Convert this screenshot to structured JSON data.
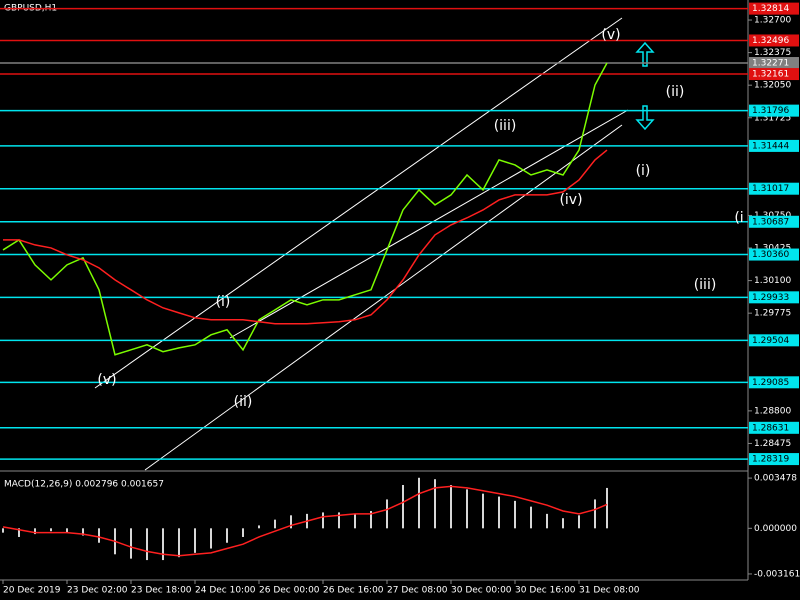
{
  "chart_data": [
    {
      "type": "line",
      "title": "GBPUSD,H1",
      "x": [
        0,
        4,
        8,
        12,
        16,
        20,
        24,
        28,
        32,
        36,
        40,
        44,
        48,
        52,
        56,
        60,
        64,
        68,
        72,
        76,
        80,
        84,
        88,
        92,
        96,
        100,
        104,
        108,
        112,
        116,
        120,
        124,
        128,
        132,
        136,
        140,
        144,
        148,
        151
      ],
      "series": [
        {
          "color": "#7cfc00",
          "values": [
            1.30406,
            1.30506,
            1.30257,
            1.30107,
            1.30257,
            1.30327,
            1.30008,
            1.2936,
            1.29409,
            1.29459,
            1.2939,
            1.29429,
            1.29459,
            1.29559,
            1.29609,
            1.29409,
            1.29709,
            1.29808,
            1.29908,
            1.29858,
            1.29908,
            1.29908,
            1.29958,
            1.30008,
            1.30406,
            1.30805,
            1.31005,
            1.30855,
            1.30955,
            1.31154,
            1.31005,
            1.31304,
            1.31254,
            1.31154,
            1.31204,
            1.31154,
            1.31403,
            1.32052,
            1.32271
          ]
        },
        {
          "color": "#ff2020",
          "values": [
            1.30506,
            1.30506,
            1.30456,
            1.30426,
            1.30357,
            1.30307,
            1.30227,
            1.30107,
            1.30008,
            1.29908,
            1.29828,
            1.29778,
            1.29729,
            1.29709,
            1.29709,
            1.29709,
            1.29689,
            1.29669,
            1.29669,
            1.29669,
            1.29679,
            1.29689,
            1.29709,
            1.29758,
            1.29908,
            1.30107,
            1.30357,
            1.30556,
            1.30656,
            1.30726,
            1.30805,
            1.30905,
            1.30955,
            1.30955,
            1.30955,
            1.30985,
            1.31104,
            1.31304,
            1.31403
          ]
        }
      ],
      "levels": [
        {
          "value": 1.32814,
          "label": "1.32814",
          "color": "#e01010"
        },
        {
          "value": 1.32496,
          "label": "1.32496",
          "color": "#e01010"
        },
        {
          "value": 1.32271,
          "label": "1.32271",
          "color": "#808080"
        },
        {
          "value": 1.32161,
          "label": "1.32161",
          "color": "#e01010"
        },
        {
          "value": 1.31796,
          "label": "1.31796",
          "color": "#00e5ee"
        },
        {
          "value": 1.31444,
          "label": "1.31444",
          "color": "#00e5ee"
        },
        {
          "value": 1.31017,
          "label": "1.31017",
          "color": "#00e5ee"
        },
        {
          "value": 1.30687,
          "label": "1.30687",
          "color": "#00e5ee"
        },
        {
          "value": 1.3036,
          "label": "1.30360",
          "color": "#00e5ee"
        },
        {
          "value": 1.29933,
          "label": "1.29933",
          "color": "#00e5ee"
        },
        {
          "value": 1.29504,
          "label": "1.29504",
          "color": "#00e5ee"
        },
        {
          "value": 1.29085,
          "label": "1.29085",
          "color": "#00e5ee"
        },
        {
          "value": 1.28631,
          "label": "1.28631",
          "color": "#00e5ee"
        },
        {
          "value": 1.28319,
          "label": "1.28319",
          "color": "#00e5ee"
        }
      ],
      "annotations": [
        {
          "text": "(v)",
          "x": 152,
          "y": 1.3255
        },
        {
          "text": "(ii)",
          "x": 168,
          "y": 1.31982
        },
        {
          "text": "(iii)",
          "x": 125.5,
          "y": 1.31643
        },
        {
          "text": "(i)",
          "x": 160,
          "y": 1.31194
        },
        {
          "text": "(iv)",
          "x": 142,
          "y": 1.30905
        },
        {
          "text": "(i",
          "x": 184,
          "y": 1.30725
        },
        {
          "text": "(iii)",
          "x": 175.5,
          "y": 1.30057
        },
        {
          "text": "(i)",
          "x": 55,
          "y": 1.29888
        },
        {
          "text": "(v)",
          "x": 26,
          "y": 1.2911
        },
        {
          "text": "(ii)",
          "x": 60,
          "y": 1.28891
        }
      ],
      "xlim": [
        -0.75,
        186.25
      ],
      "ylim": [
        1.2821,
        1.329
      ],
      "yticks": [
        {
          "value": 1.327,
          "label": "1.32700"
        },
        1.32375,
        {
          "value": 1.3205,
          "label": "1.32050"
        },
        1.31725,
        {
          "value": 1.3075,
          "label": "1.30750"
        },
        1.30425,
        {
          "value": 1.301,
          "label": "1.30100"
        },
        1.29775,
        {
          "value": 1.288,
          "label": "1.28800"
        },
        1.28475
      ],
      "xticks": [
        {
          "value": 0,
          "label": "20 Dec 2019"
        },
        {
          "value": 16,
          "label": "23 Dec 02:00"
        },
        {
          "value": 32,
          "label": "23 Dec 18:00"
        },
        {
          "value": 48,
          "label": "24 Dec 10:00"
        },
        {
          "value": 64,
          "label": "26 Dec 00:00"
        },
        {
          "value": 80,
          "label": "26 Dec 16:00"
        },
        {
          "value": 96,
          "label": "27 Dec 08:00"
        },
        {
          "value": 112,
          "label": "30 Dec 00:00"
        },
        {
          "value": 128,
          "label": "30 Dec 16:00"
        },
        {
          "value": 144,
          "label": "31 Dec 08:00"
        }
      ]
    },
    {
      "type": "bar",
      "title": "MACD(12,26,9) 0.002796 0.001657",
      "x": [
        0,
        4,
        8,
        12,
        16,
        20,
        24,
        28,
        32,
        36,
        40,
        44,
        48,
        52,
        56,
        60,
        64,
        68,
        72,
        76,
        80,
        84,
        88,
        92,
        96,
        100,
        104,
        108,
        112,
        116,
        120,
        124,
        128,
        132,
        136,
        140,
        144,
        148,
        151
      ],
      "series": [
        {
          "type": "bar",
          "color": "#d8d8d8",
          "values": [
            -0.0003,
            -0.0006,
            -0.0004,
            -0.0002,
            -0.0003,
            -0.0005,
            -0.001,
            -0.0018,
            -0.0021,
            -0.0022,
            -0.0022,
            -0.002,
            -0.0017,
            -0.0014,
            -0.001,
            -0.0006,
            0.0002,
            0.0006,
            0.0009,
            0.001,
            0.0011,
            0.0011,
            0.001,
            0.0012,
            0.002,
            0.003,
            0.0035,
            0.0034,
            0.003,
            0.0027,
            0.0024,
            0.0022,
            0.0019,
            0.0015,
            0.001,
            0.0007,
            0.0009,
            0.002,
            0.002796
          ]
        },
        {
          "type": "line",
          "color": "#ff2020",
          "values": [
            0.0001,
            -0.0001,
            -0.0003,
            -0.0003,
            -0.0003,
            -0.0004,
            -0.0006,
            -0.0009,
            -0.0013,
            -0.0016,
            -0.0018,
            -0.0019,
            -0.0018,
            -0.0017,
            -0.0014,
            -0.0011,
            -0.0006,
            -0.0002,
            0.0002,
            0.0005,
            0.0008,
            0.0009,
            0.001,
            0.001,
            0.0013,
            0.0018,
            0.0024,
            0.0028,
            0.0029,
            0.0028,
            0.0026,
            0.0024,
            0.0022,
            0.0019,
            0.0016,
            0.0012,
            0.001,
            0.0013,
            0.001657
          ]
        }
      ],
      "xlim": [
        -0.75,
        186.25
      ],
      "ylim": [
        -0.00358,
        0.0039
      ],
      "yticks": [
        {
          "value": 0.003478,
          "label": "0.003478"
        },
        {
          "value": 0,
          "label": "0.000000"
        },
        {
          "value": -0.003161,
          "label": "-0.003161"
        }
      ]
    }
  ]
}
